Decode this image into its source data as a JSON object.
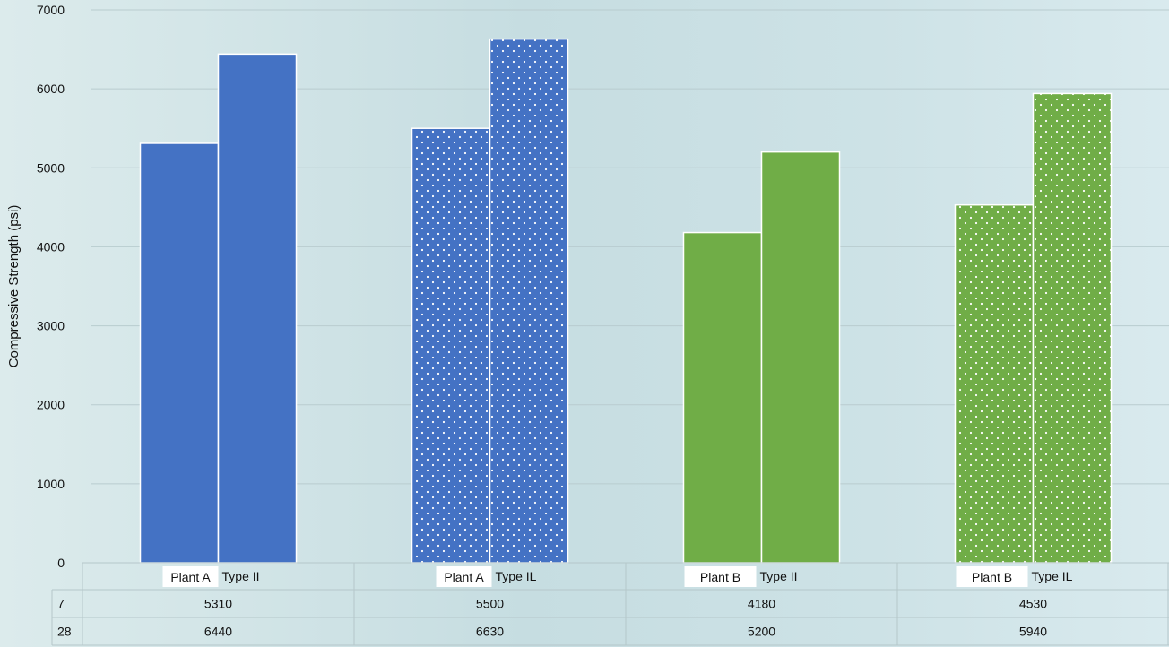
{
  "chart_data": {
    "type": "bar",
    "ylabel": "Compressive Strength (psi)",
    "ylim": [
      0,
      7000
    ],
    "yticks": [
      0,
      1000,
      2000,
      3000,
      4000,
      5000,
      6000,
      7000
    ],
    "grid": true,
    "categories": [
      {
        "plant": "Plant A",
        "type": "Type II",
        "color": "#4472c4",
        "pattern": "solid"
      },
      {
        "plant": "Plant A",
        "type": "Type IL",
        "color": "#4472c4",
        "pattern": "dots"
      },
      {
        "plant": "Plant B",
        "type": "Type II",
        "color": "#70ad47",
        "pattern": "solid"
      },
      {
        "plant": "Plant B",
        "type": "Type IL",
        "color": "#70ad47",
        "pattern": "dots"
      }
    ],
    "series": [
      {
        "name": "7",
        "values": [
          5310,
          5500,
          4180,
          4530
        ]
      },
      {
        "name": "28",
        "values": [
          6440,
          6630,
          5200,
          5940
        ]
      }
    ]
  }
}
